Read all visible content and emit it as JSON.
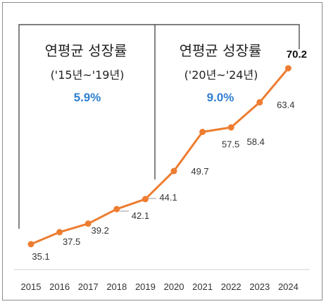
{
  "chart_data": {
    "type": "line",
    "title": "",
    "xlabel": "",
    "ylabel": "",
    "categories": [
      "2015",
      "2016",
      "2017",
      "2018",
      "2019",
      "2020",
      "2021",
      "2022",
      "2023",
      "2024"
    ],
    "series": [
      {
        "values": [
          35.1,
          37.5,
          39.2,
          42.1,
          44.1,
          49.7,
          57.5,
          58.4,
          63.4,
          70.2
        ]
      }
    ],
    "data_labels": [
      "35.1",
      "37.5",
      "39.2",
      "42.1",
      "44.1",
      "49.7",
      "57.5",
      "58.4",
      "63.4",
      "70.2"
    ],
    "ylim": [
      30,
      75
    ],
    "grid": false,
    "legend": "none",
    "line_color": "#ed7d31",
    "annotations": [
      {
        "title": "연평균 성장률",
        "range": "('15년~'19년)",
        "rate": "5.9%"
      },
      {
        "title": "연평균 성장률",
        "range": "('20년~'24년)",
        "rate": "9.0%"
      }
    ],
    "annotation_rate_color": "#2f7fd1"
  }
}
